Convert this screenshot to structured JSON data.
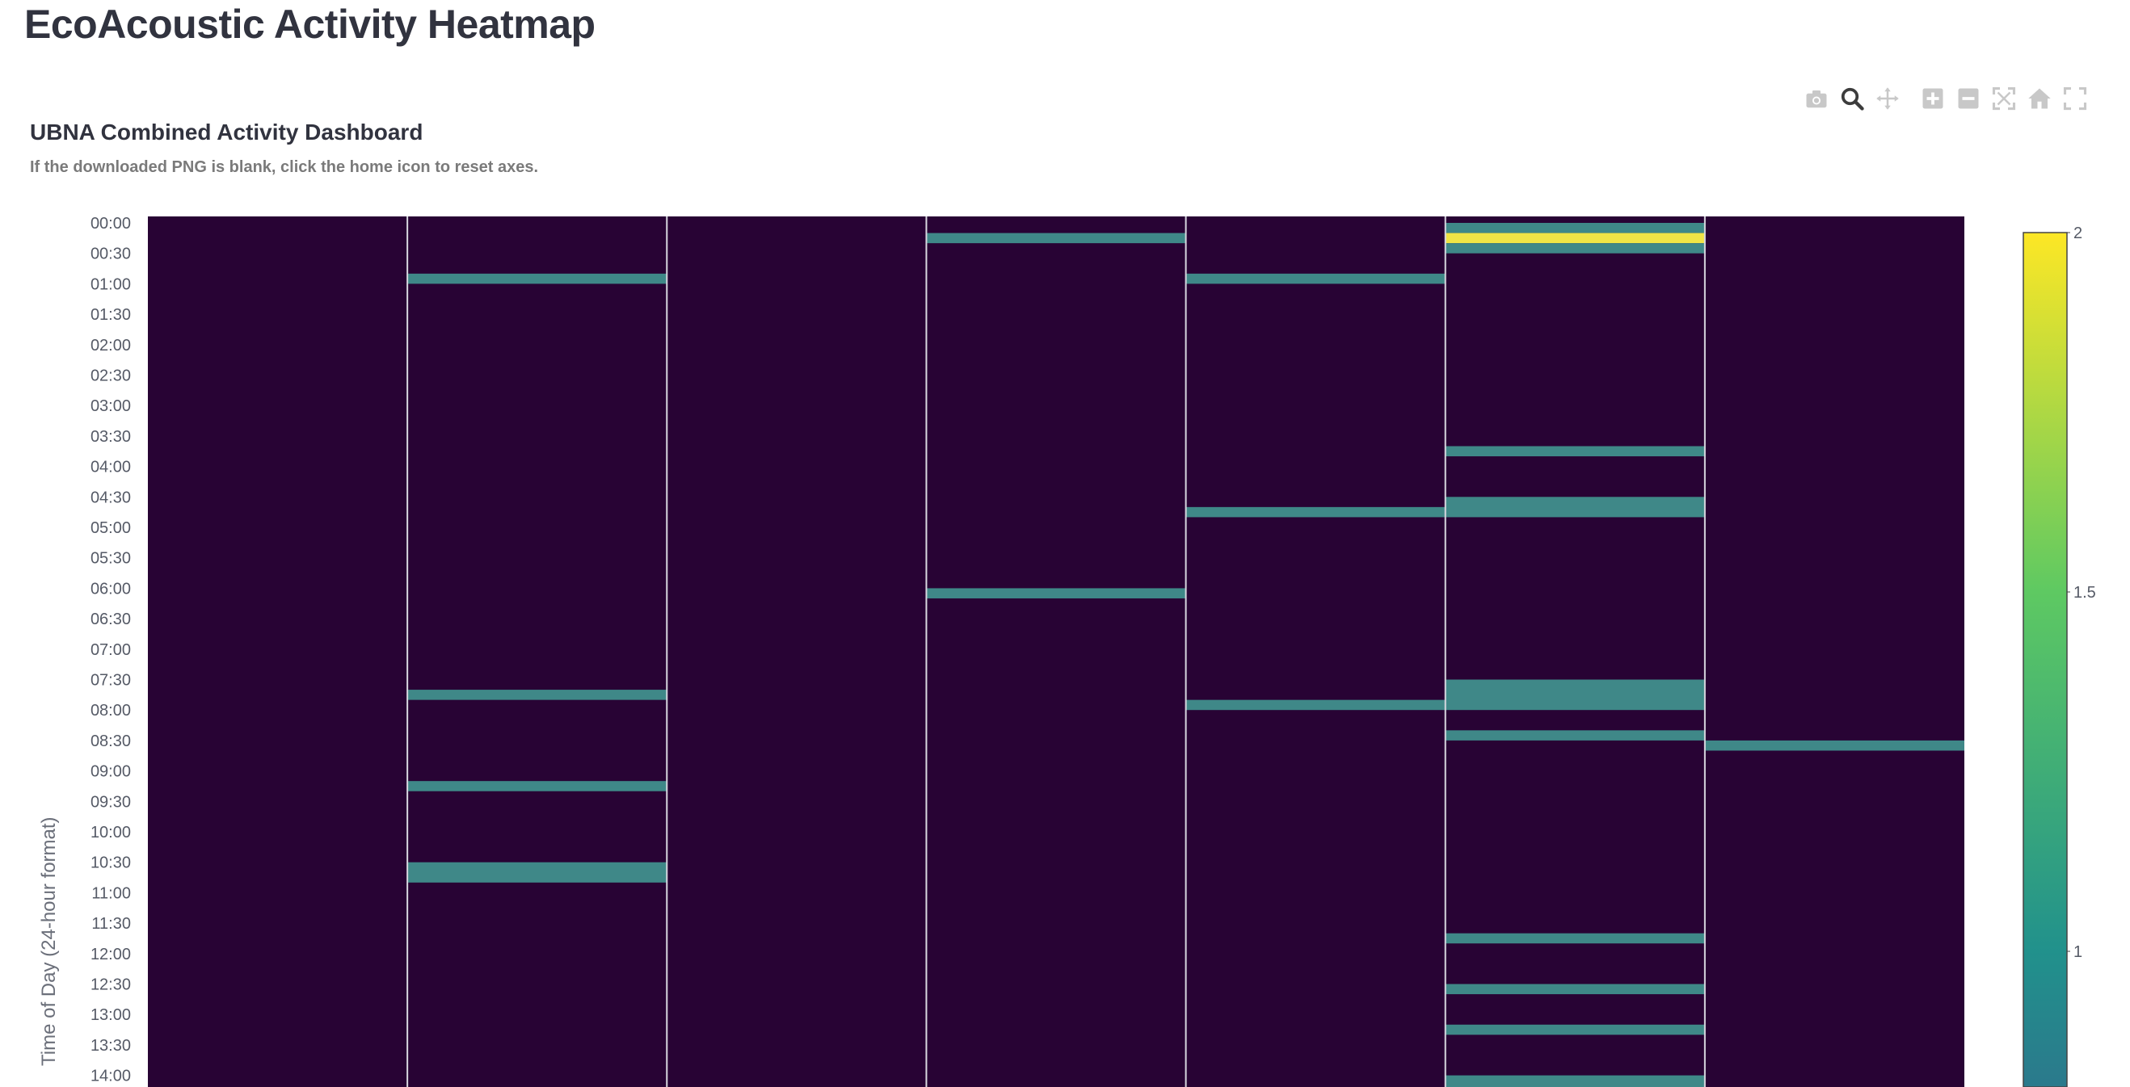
{
  "page": {
    "title": "EcoAcoustic Activity Heatmap"
  },
  "modebar": {
    "icons": [
      "camera-icon",
      "zoom-icon",
      "pan-icon",
      "zoom-in-icon",
      "zoom-out-icon",
      "autoscale-icon",
      "home-icon",
      "fullscreen-icon"
    ]
  },
  "chart_data": {
    "type": "heatmap",
    "title": "UBNA Combined Activity Dashboard",
    "subtitle": "If the downloaded PNG is blank, click the home icon to reset axes.",
    "ylabel": "Time of Day (24-hour format)",
    "xlabel": "",
    "y_ticks": [
      "00:00",
      "00:30",
      "01:00",
      "01:30",
      "02:00",
      "02:30",
      "03:00",
      "03:30",
      "04:00",
      "04:30",
      "05:00",
      "05:30",
      "06:00",
      "06:30",
      "07:00",
      "07:30",
      "08:00",
      "08:30",
      "09:00",
      "09:30",
      "10:00",
      "10:30",
      "11:00",
      "11:30",
      "12:00",
      "12:30",
      "13:00",
      "13:30",
      "14:00"
    ],
    "y_range_hours": [
      0,
      14.25
    ],
    "columns": 7,
    "baseline_value": 0,
    "colorscale": "viridis",
    "color_range": [
      0,
      2
    ],
    "colorbar_ticks": [
      1,
      1.5,
      2
    ],
    "cells": [
      {
        "column": 2,
        "start": "00:50",
        "end": "01:00",
        "value": 1
      },
      {
        "column": 2,
        "start": "07:40",
        "end": "07:50",
        "value": 1
      },
      {
        "column": 2,
        "start": "09:10",
        "end": "09:20",
        "value": 1
      },
      {
        "column": 2,
        "start": "10:30",
        "end": "10:50",
        "value": 1
      },
      {
        "column": 4,
        "start": "00:10",
        "end": "00:20",
        "value": 1
      },
      {
        "column": 4,
        "start": "06:00",
        "end": "06:10",
        "value": 1
      },
      {
        "column": 5,
        "start": "00:50",
        "end": "01:00",
        "value": 1
      },
      {
        "column": 5,
        "start": "04:40",
        "end": "04:50",
        "value": 1
      },
      {
        "column": 5,
        "start": "07:50",
        "end": "08:00",
        "value": 1
      },
      {
        "column": 6,
        "start": "00:00",
        "end": "00:10",
        "value": 1
      },
      {
        "column": 6,
        "start": "00:10",
        "end": "00:20",
        "value": 2
      },
      {
        "column": 6,
        "start": "00:20",
        "end": "00:30",
        "value": 1
      },
      {
        "column": 6,
        "start": "03:40",
        "end": "03:50",
        "value": 1
      },
      {
        "column": 6,
        "start": "04:30",
        "end": "04:50",
        "value": 1
      },
      {
        "column": 6,
        "start": "07:30",
        "end": "08:00",
        "value": 1
      },
      {
        "column": 6,
        "start": "08:20",
        "end": "08:30",
        "value": 1
      },
      {
        "column": 6,
        "start": "11:40",
        "end": "11:50",
        "value": 1
      },
      {
        "column": 6,
        "start": "12:30",
        "end": "12:40",
        "value": 1
      },
      {
        "column": 6,
        "start": "13:10",
        "end": "13:20",
        "value": 1
      },
      {
        "column": 6,
        "start": "13:60",
        "end": "14:20",
        "value": 1
      },
      {
        "column": 7,
        "start": "08:30",
        "end": "08:40",
        "value": 1
      }
    ]
  }
}
